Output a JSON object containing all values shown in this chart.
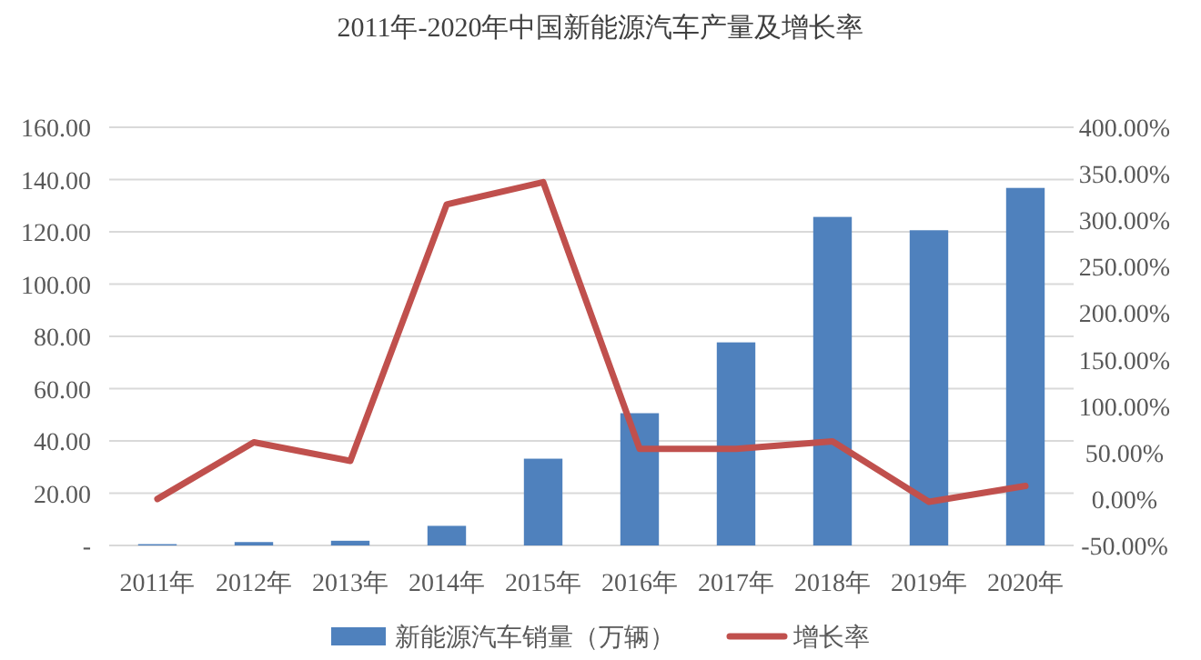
{
  "chart_data": {
    "type": "bar",
    "title": "2011年-2020年中国新能源汽车产量及增长率",
    "categories": [
      "2011年",
      "2012年",
      "2013年",
      "2014年",
      "2015年",
      "2016年",
      "2017年",
      "2018年",
      "2019年",
      "2020年"
    ],
    "series": [
      {
        "name": "新能源汽车销量（万辆）",
        "color": "#4f81bd",
        "values": [
          0.5,
          1.3,
          1.8,
          7.5,
          33.2,
          50.6,
          77.7,
          125.7,
          120.6,
          136.8
        ]
      },
      {
        "name": "增长率",
        "type": "line",
        "axis": "y2",
        "color": "#c0504d",
        "values": [
          0,
          61,
          41,
          317,
          341,
          54,
          54,
          62,
          -3,
          14
        ]
      }
    ],
    "ylim": [
      0,
      160
    ],
    "yticks": [
      {
        "value": 0,
        "label": "-"
      },
      {
        "value": 20,
        "label": "20.00"
      },
      {
        "value": 40,
        "label": "40.00"
      },
      {
        "value": 60,
        "label": "60.00"
      },
      {
        "value": 80,
        "label": "80.00"
      },
      {
        "value": 100,
        "label": "100.00"
      },
      {
        "value": 120,
        "label": "120.00"
      },
      {
        "value": 140,
        "label": "140.00"
      },
      {
        "value": 160,
        "label": "160.00"
      }
    ],
    "y2lim": [
      -50,
      400
    ],
    "y2ticks": [
      {
        "value": -50,
        "label": "-50.00%"
      },
      {
        "value": 0,
        "label": "0.00%"
      },
      {
        "value": 50,
        "label": "50.00%"
      },
      {
        "value": 100,
        "label": "100.00%"
      },
      {
        "value": 150,
        "label": "150.00%"
      },
      {
        "value": 200,
        "label": "200.00%"
      },
      {
        "value": 250,
        "label": "250.00%"
      },
      {
        "value": 300,
        "label": "300.00%"
      },
      {
        "value": 350,
        "label": "350.00%"
      },
      {
        "value": 400,
        "label": "400.00%"
      }
    ],
    "grid": "y",
    "legend": "bottom"
  }
}
